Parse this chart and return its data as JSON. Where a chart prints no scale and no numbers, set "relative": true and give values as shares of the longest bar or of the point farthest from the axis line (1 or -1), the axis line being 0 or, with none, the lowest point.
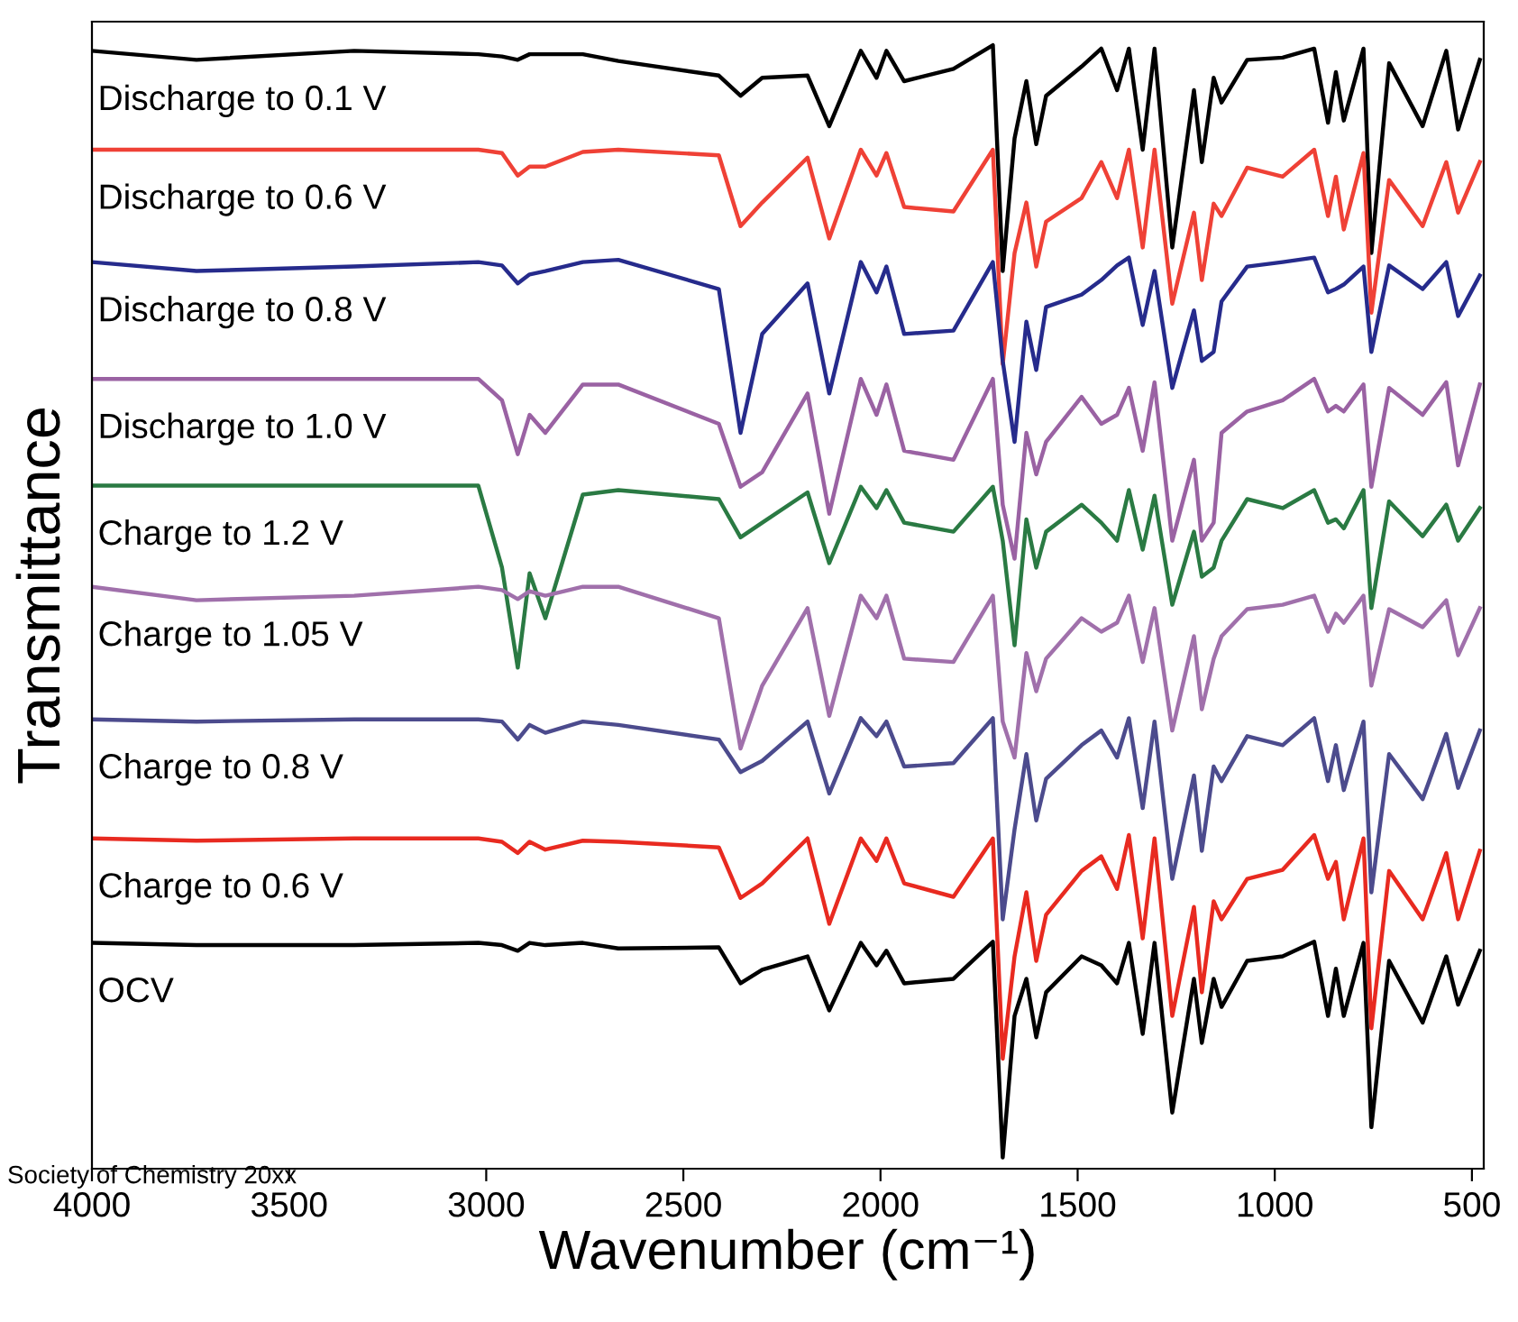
{
  "chart_data": {
    "type": "line",
    "relative": true,
    "xlabel": "Wavenumber (cm⁻¹)",
    "ylabel": "Transmittance",
    "xlim": [
      4000,
      470
    ],
    "xticks": [
      4000,
      3500,
      3000,
      2500,
      2000,
      1500,
      1000,
      500
    ],
    "legend": false,
    "grid": false,
    "marker": "none",
    "line_style": "solid",
    "x": [
      4000,
      3735,
      3335,
      3020,
      2960,
      2920,
      2890,
      2850,
      2755,
      2665,
      2410,
      2355,
      2300,
      2185,
      2130,
      2050,
      2010,
      1985,
      1940,
      1815,
      1715,
      1690,
      1660,
      1630,
      1605,
      1580,
      1490,
      1440,
      1400,
      1370,
      1335,
      1305,
      1260,
      1205,
      1185,
      1155,
      1135,
      1070,
      980,
      900,
      865,
      845,
      825,
      775,
      755,
      710,
      625,
      565,
      535,
      480
    ],
    "annotations": [
      "Society of Chemistry 20xx"
    ],
    "series": [
      {
        "name": "Discharge to 0.1 V",
        "color": "#000000",
        "values": [
          0.995,
          0.987,
          0.995,
          0.992,
          0.99,
          0.987,
          0.992,
          0.992,
          0.992,
          0.986,
          0.973,
          0.955,
          0.971,
          0.973,
          0.928,
          0.995,
          0.971,
          0.995,
          0.968,
          0.979,
          1.0,
          0.799,
          0.917,
          0.968,
          0.912,
          0.955,
          0.981,
          0.997,
          0.96,
          0.997,
          0.907,
          0.997,
          0.82,
          0.96,
          0.896,
          0.971,
          0.949,
          0.987,
          0.989,
          0.997,
          0.931,
          0.976,
          0.933,
          0.997,
          0.815,
          0.984,
          0.928,
          0.995,
          0.925,
          0.987
        ]
      },
      {
        "name": "Discharge to 0.6 V",
        "color": "#ef4136",
        "values": [
          0.907,
          0.907,
          0.907,
          0.907,
          0.904,
          0.884,
          0.892,
          0.892,
          0.905,
          0.907,
          0.902,
          0.839,
          0.86,
          0.9,
          0.828,
          0.907,
          0.884,
          0.904,
          0.856,
          0.852,
          0.907,
          0.716,
          0.815,
          0.86,
          0.803,
          0.843,
          0.864,
          0.896,
          0.864,
          0.907,
          0.82,
          0.907,
          0.77,
          0.851,
          0.791,
          0.859,
          0.848,
          0.891,
          0.883,
          0.907,
          0.848,
          0.883,
          0.836,
          0.904,
          0.762,
          0.88,
          0.839,
          0.896,
          0.851,
          0.896
        ]
      },
      {
        "name": "Discharge to 0.8 V",
        "color": "#262b8c",
        "values": [
          0.807,
          0.799,
          0.803,
          0.807,
          0.804,
          0.788,
          0.796,
          0.799,
          0.807,
          0.809,
          0.783,
          0.655,
          0.743,
          0.788,
          0.69,
          0.807,
          0.78,
          0.803,
          0.743,
          0.746,
          0.807,
          0.719,
          0.647,
          0.754,
          0.711,
          0.767,
          0.778,
          0.791,
          0.804,
          0.811,
          0.751,
          0.799,
          0.695,
          0.764,
          0.719,
          0.727,
          0.772,
          0.803,
          0.807,
          0.811,
          0.78,
          0.783,
          0.787,
          0.803,
          0.727,
          0.804,
          0.783,
          0.807,
          0.759,
          0.795
        ]
      },
      {
        "name": "Discharge to 1.0 V",
        "color": "#9a62a3",
        "values": [
          0.703,
          0.703,
          0.703,
          0.703,
          0.684,
          0.636,
          0.671,
          0.655,
          0.698,
          0.698,
          0.663,
          0.607,
          0.62,
          0.69,
          0.583,
          0.703,
          0.671,
          0.698,
          0.639,
          0.631,
          0.703,
          0.591,
          0.543,
          0.655,
          0.618,
          0.647,
          0.687,
          0.663,
          0.671,
          0.695,
          0.639,
          0.7,
          0.559,
          0.631,
          0.559,
          0.575,
          0.655,
          0.674,
          0.684,
          0.703,
          0.674,
          0.679,
          0.674,
          0.698,
          0.607,
          0.695,
          0.671,
          0.7,
          0.626,
          0.698
        ]
      },
      {
        "name": "Charge to 1.2 V",
        "color": "#2a7a43",
        "values": [
          0.608,
          0.608,
          0.608,
          0.608,
          0.535,
          0.446,
          0.53,
          0.49,
          0.6,
          0.604,
          0.596,
          0.562,
          0.575,
          0.602,
          0.539,
          0.607,
          0.588,
          0.604,
          0.575,
          0.567,
          0.607,
          0.559,
          0.466,
          0.578,
          0.535,
          0.567,
          0.591,
          0.575,
          0.559,
          0.604,
          0.551,
          0.599,
          0.502,
          0.567,
          0.527,
          0.535,
          0.559,
          0.596,
          0.588,
          0.604,
          0.575,
          0.578,
          0.57,
          0.604,
          0.499,
          0.594,
          0.563,
          0.591,
          0.559,
          0.588
        ]
      },
      {
        "name": "Charge to 1.05 V",
        "color": "#a070ab",
        "values": [
          0.518,
          0.506,
          0.51,
          0.518,
          0.515,
          0.507,
          0.514,
          0.51,
          0.518,
          0.518,
          0.49,
          0.374,
          0.43,
          0.499,
          0.403,
          0.51,
          0.49,
          0.51,
          0.454,
          0.451,
          0.51,
          0.398,
          0.366,
          0.459,
          0.425,
          0.454,
          0.49,
          0.478,
          0.486,
          0.51,
          0.451,
          0.499,
          0.39,
          0.474,
          0.409,
          0.454,
          0.474,
          0.498,
          0.502,
          0.51,
          0.478,
          0.494,
          0.486,
          0.51,
          0.43,
          0.498,
          0.482,
          0.506,
          0.457,
          0.499
        ]
      },
      {
        "name": "Charge to 0.8 V",
        "color": "#4c4b8d",
        "values": [
          0.4,
          0.398,
          0.4,
          0.4,
          0.398,
          0.382,
          0.395,
          0.388,
          0.398,
          0.395,
          0.382,
          0.353,
          0.363,
          0.398,
          0.334,
          0.401,
          0.385,
          0.398,
          0.358,
          0.361,
          0.401,
          0.222,
          0.302,
          0.369,
          0.31,
          0.347,
          0.377,
          0.39,
          0.366,
          0.401,
          0.321,
          0.398,
          0.258,
          0.35,
          0.283,
          0.358,
          0.345,
          0.385,
          0.377,
          0.401,
          0.345,
          0.377,
          0.337,
          0.398,
          0.246,
          0.369,
          0.329,
          0.387,
          0.339,
          0.39
        ]
      },
      {
        "name": "Charge to 0.6 V",
        "color": "#e82a20",
        "values": [
          0.294,
          0.292,
          0.294,
          0.294,
          0.291,
          0.281,
          0.291,
          0.284,
          0.292,
          0.291,
          0.286,
          0.241,
          0.254,
          0.294,
          0.218,
          0.294,
          0.274,
          0.294,
          0.254,
          0.242,
          0.294,
          0.098,
          0.189,
          0.246,
          0.185,
          0.226,
          0.265,
          0.278,
          0.249,
          0.297,
          0.205,
          0.294,
          0.136,
          0.233,
          0.157,
          0.238,
          0.222,
          0.258,
          0.266,
          0.297,
          0.258,
          0.273,
          0.222,
          0.294,
          0.125,
          0.265,
          0.222,
          0.281,
          0.222,
          0.283
        ]
      },
      {
        "name": "OCV",
        "color": "#000000",
        "values": [
          0.201,
          0.199,
          0.199,
          0.201,
          0.199,
          0.194,
          0.201,
          0.199,
          0.201,
          0.196,
          0.197,
          0.165,
          0.177,
          0.189,
          0.141,
          0.201,
          0.181,
          0.194,
          0.165,
          0.169,
          0.202,
          0.01,
          0.136,
          0.169,
          0.117,
          0.157,
          0.189,
          0.181,
          0.165,
          0.201,
          0.12,
          0.201,
          0.05,
          0.169,
          0.112,
          0.169,
          0.144,
          0.185,
          0.189,
          0.202,
          0.136,
          0.178,
          0.136,
          0.201,
          0.037,
          0.185,
          0.13,
          0.189,
          0.146,
          0.194
        ]
      }
    ]
  }
}
